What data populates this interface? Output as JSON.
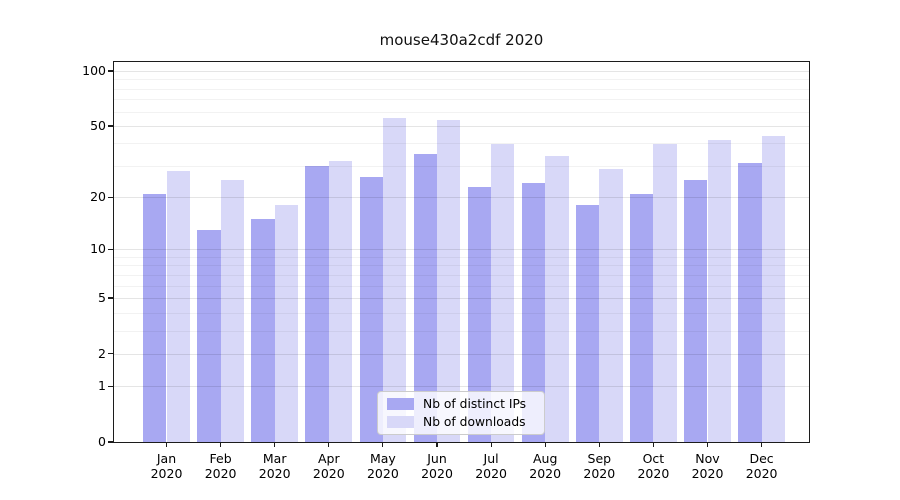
{
  "title": "mouse430a2cdf 2020",
  "chart_data": {
    "type": "bar",
    "title": "mouse430a2cdf 2020",
    "categories": [
      {
        "month": "Jan",
        "year": "2020"
      },
      {
        "month": "Feb",
        "year": "2020"
      },
      {
        "month": "Mar",
        "year": "2020"
      },
      {
        "month": "Apr",
        "year": "2020"
      },
      {
        "month": "May",
        "year": "2020"
      },
      {
        "month": "Jun",
        "year": "2020"
      },
      {
        "month": "Jul",
        "year": "2020"
      },
      {
        "month": "Aug",
        "year": "2020"
      },
      {
        "month": "Sep",
        "year": "2020"
      },
      {
        "month": "Oct",
        "year": "2020"
      },
      {
        "month": "Nov",
        "year": "2020"
      },
      {
        "month": "Dec",
        "year": "2020"
      }
    ],
    "series": [
      {
        "name": "Nb of distinct IPs",
        "color": "#a8a8f2",
        "values": [
          21,
          13,
          15,
          30,
          26,
          35,
          23,
          24,
          18,
          21,
          25,
          31
        ]
      },
      {
        "name": "Nb of downloads",
        "color": "#d8d8f8",
        "values": [
          28,
          25,
          18,
          32,
          55,
          54,
          40,
          34,
          29,
          40,
          42,
          44
        ]
      }
    ],
    "xlabel": "",
    "ylabel": "",
    "yscale": "log1p",
    "ylim": [
      0,
      112
    ],
    "yticks": [
      0,
      1,
      2,
      5,
      10,
      20,
      50,
      100
    ],
    "minor_yticks": [
      3,
      4,
      6,
      7,
      8,
      9,
      30,
      40,
      60,
      70,
      80,
      90
    ],
    "grid": true,
    "legend_position": "lower center",
    "colors": {
      "grid_major": "rgba(0,0,0,0.10)",
      "grid_minor": "rgba(0,0,0,0.05)",
      "spine": "#1c1c1c",
      "text": "#000000",
      "background": "#ffffff"
    }
  }
}
